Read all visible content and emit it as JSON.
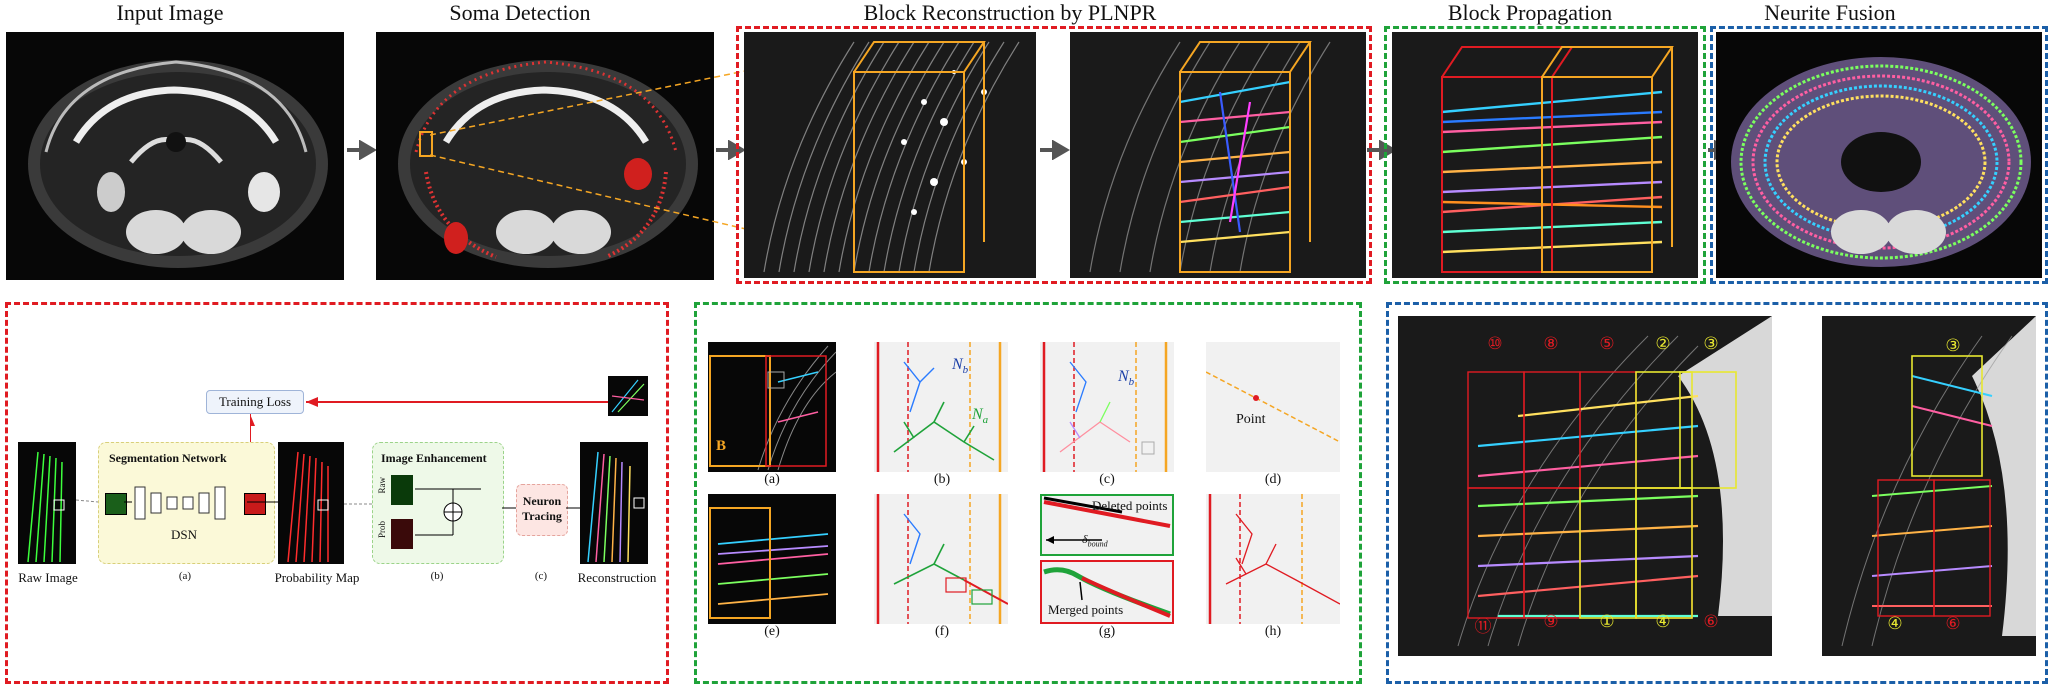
{
  "titles": {
    "input": "Input Image",
    "soma": "Soma Detection",
    "block_recon": "Block Reconstruction by PLNPR",
    "block_prop": "Block Propagation",
    "fusion": "Neurite Fusion"
  },
  "pipeline": {
    "training_loss": "Training Loss",
    "seg_network": "Segmentation Network",
    "dsn": "DSN",
    "raw_image": "Raw Image",
    "prob_map": "Probability Map",
    "image_enhancement": "Image Enhancement",
    "raw": "Raw",
    "prob": "Prob",
    "neuron_tracing_1": "Neuron",
    "neuron_tracing_2": "Tracing",
    "reconstruction": "Reconstruction",
    "sub_a": "(a)",
    "sub_b": "(b)",
    "sub_c": "(c)"
  },
  "propagation": {
    "sub": [
      "(a)",
      "(b)",
      "(c)",
      "(d)",
      "(e)",
      "(f)",
      "(g)",
      "(h)"
    ],
    "n_b": "N",
    "n_b_sub": "b",
    "n_a": "N",
    "n_a_sub": "a",
    "point": "Point",
    "deleted_points": "Deleted points",
    "merged_points": "Merged points",
    "delta": "δ",
    "delta_sub": "bound",
    "b_label": "B"
  },
  "fusion_panel": {
    "left_red": [
      "⑩",
      "⑧",
      "⑤"
    ],
    "left_yellow": [
      "②",
      "③"
    ],
    "left_bottom": [
      "⑪",
      "⑨",
      "①",
      "④",
      "⑥"
    ],
    "right_top": "③",
    "right_bottom": [
      "④",
      "⑥"
    ]
  },
  "colors": {
    "red": "#e01b22",
    "green": "#1fa33a",
    "blue": "#1b5fa8",
    "orange": "#f5a623",
    "yellow": "#e8e830"
  }
}
